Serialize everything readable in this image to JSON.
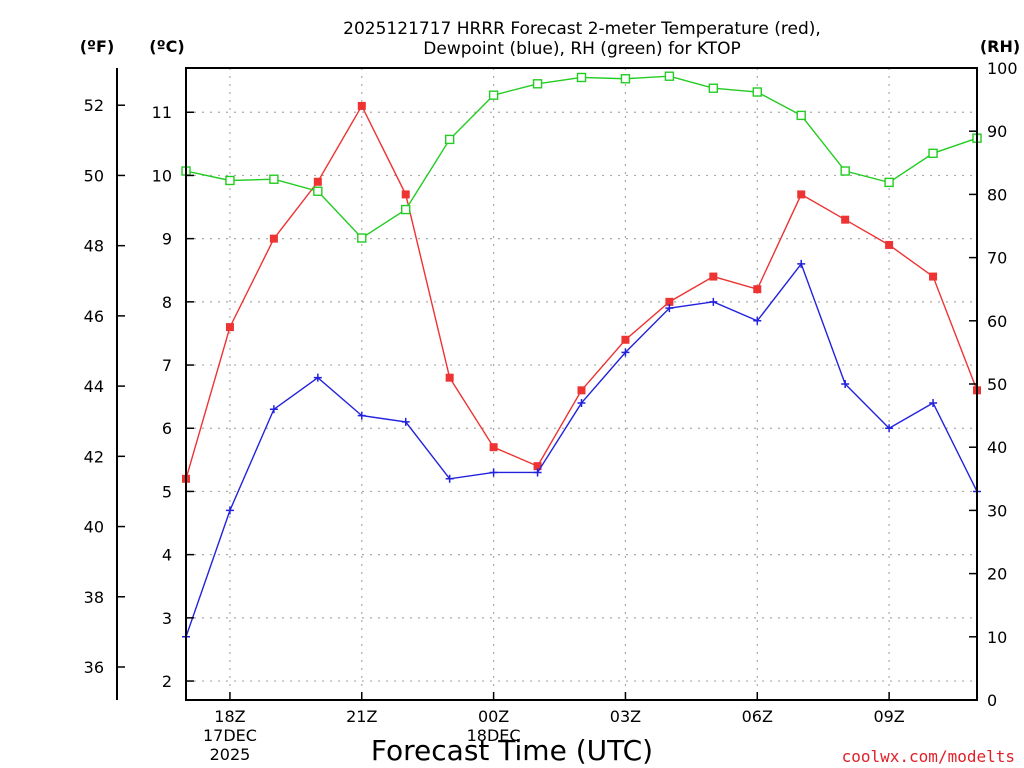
{
  "chart_data": {
    "type": "line",
    "title": [
      "2025121717 HRRR Forecast 2-meter Temperature (red),",
      "Dewpoint (blue), RH (green) for KTOP"
    ],
    "xlabel": "Forecast Time (UTC)",
    "credit": "coolwx.com/modelts",
    "units": {
      "fahrenheit": "(ºF)",
      "celsius": "(ºC)",
      "rh": "(RH)"
    },
    "xlim": [
      17,
      35
    ],
    "x_ticks": [
      {
        "x": 18,
        "lines": [
          "18Z",
          "17DEC",
          "2025"
        ]
      },
      {
        "x": 21,
        "lines": [
          "21Z"
        ]
      },
      {
        "x": 24,
        "lines": [
          "00Z",
          "18DEC"
        ]
      },
      {
        "x": 27,
        "lines": [
          "03Z"
        ]
      },
      {
        "x": 30,
        "lines": [
          "06Z"
        ]
      },
      {
        "x": 33,
        "lines": [
          "09Z"
        ]
      }
    ],
    "y_celsius": {
      "lim": [
        1.7,
        11.7
      ],
      "ticks": [
        2,
        3,
        4,
        5,
        6,
        7,
        8,
        9,
        10,
        11
      ]
    },
    "y_fahrenheit": {
      "ticks": [
        36,
        38,
        40,
        42,
        44,
        46,
        48,
        50,
        52
      ]
    },
    "y_rh": {
      "lim": [
        0,
        100
      ],
      "ticks": [
        0,
        10,
        20,
        30,
        40,
        50,
        60,
        70,
        80,
        90,
        100
      ]
    },
    "x": [
      17,
      18,
      19,
      20,
      21,
      22,
      23,
      24,
      25,
      26,
      27,
      28,
      29,
      30,
      31,
      32,
      33,
      34,
      35
    ],
    "grid": true,
    "series": [
      {
        "axis": "celsius",
        "color": "#ee3333",
        "marker": "filled-square",
        "values": [
          5.2,
          7.6,
          9.0,
          9.9,
          11.1,
          9.7,
          6.8,
          5.7,
          5.4,
          6.6,
          7.4,
          8.0,
          8.4,
          8.2,
          9.7,
          9.3,
          8.9,
          8.4,
          6.6
        ]
      },
      {
        "axis": "celsius",
        "color": "#2222dd",
        "marker": "plus",
        "values": [
          2.7,
          4.7,
          6.3,
          6.8,
          6.2,
          6.1,
          5.2,
          5.3,
          5.3,
          6.4,
          7.2,
          7.9,
          8.0,
          7.7,
          8.6,
          6.7,
          6.0,
          6.4,
          5.0
        ]
      },
      {
        "axis": "rh",
        "color": "#22cc22",
        "marker": "open-square",
        "values": [
          83.7,
          82.2,
          82.4,
          80.5,
          73.1,
          77.6,
          88.7,
          95.7,
          97.5,
          98.5,
          98.3,
          98.7,
          96.8,
          96.2,
          92.5,
          83.7,
          81.9,
          86.5,
          88.9
        ]
      }
    ]
  }
}
